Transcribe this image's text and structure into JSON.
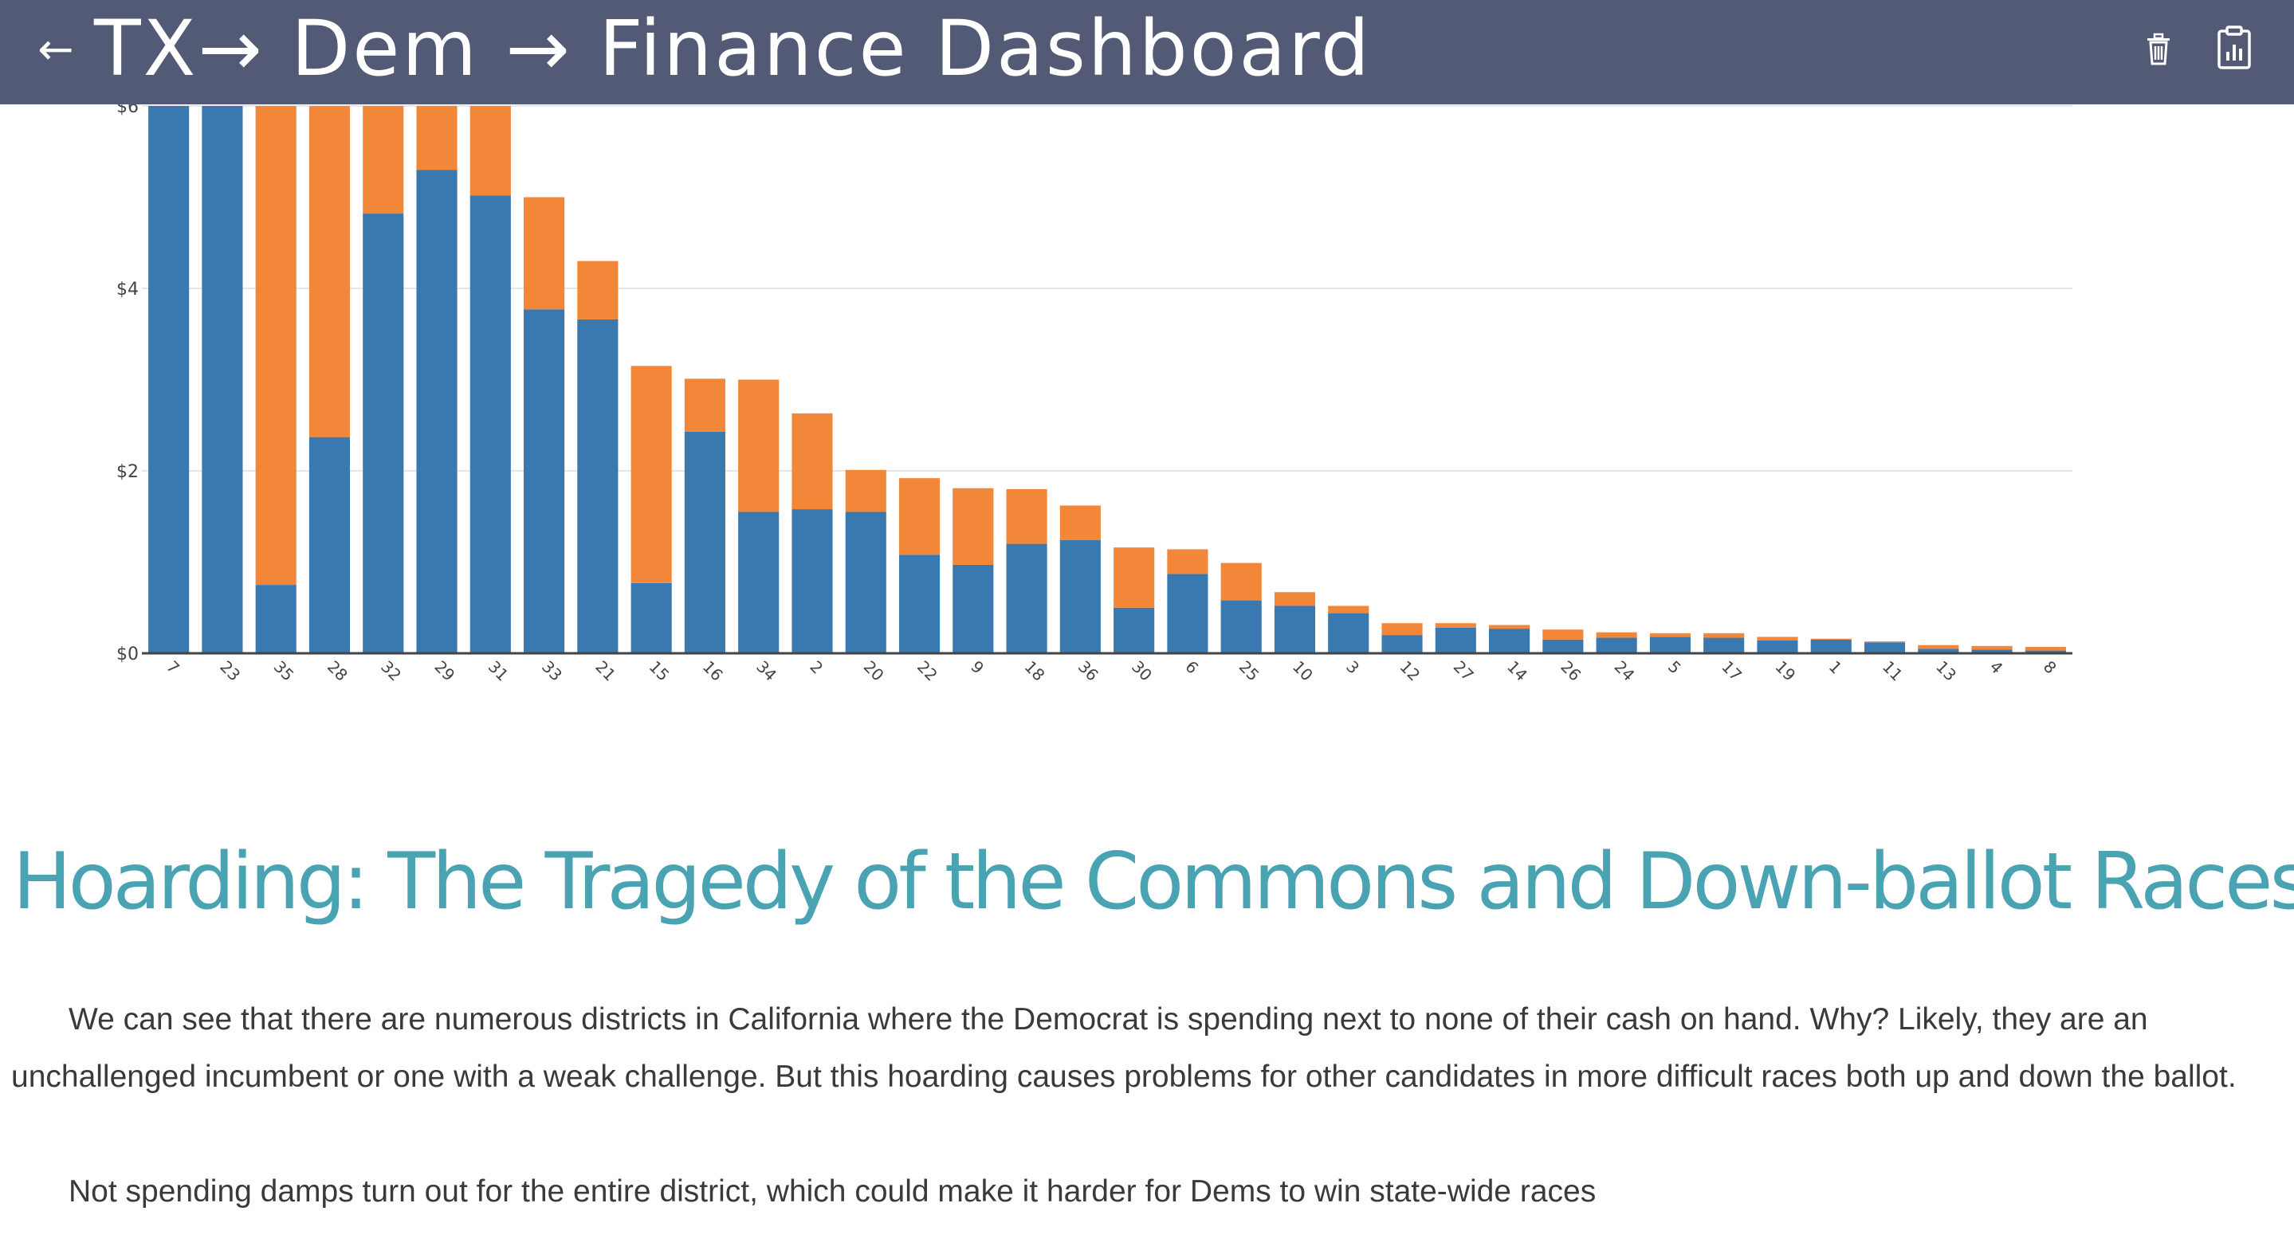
{
  "header": {
    "back_icon": "arrow-left-icon",
    "title": "TX→ Dem → Finance Dashboard",
    "icons": [
      "trash-icon",
      "clipboard-report-icon"
    ],
    "colors": {
      "background": "#525a75",
      "text": "#ffffff"
    }
  },
  "chart_data": {
    "type": "bar",
    "stacked": true,
    "categories": [
      "7",
      "23",
      "35",
      "28",
      "32",
      "29",
      "31",
      "33",
      "21",
      "15",
      "16",
      "34",
      "2",
      "20",
      "22",
      "9",
      "18",
      "36",
      "30",
      "6",
      "25",
      "10",
      "3",
      "12",
      "27",
      "14",
      "26",
      "24",
      "5",
      "17",
      "19",
      "1",
      "11",
      "13",
      "4",
      "8"
    ],
    "series": [
      {
        "color": "#3a78b0",
        "values": [
          6.0,
          6.0,
          0.75,
          2.37,
          4.82,
          5.3,
          5.02,
          3.77,
          3.66,
          0.77,
          2.43,
          1.55,
          1.58,
          1.55,
          1.08,
          0.97,
          1.2,
          1.24,
          0.5,
          0.87,
          0.58,
          0.52,
          0.44,
          0.2,
          0.28,
          0.27,
          0.15,
          0.17,
          0.18,
          0.17,
          0.14,
          0.15,
          0.12,
          0.05,
          0.04,
          0.03
        ]
      },
      {
        "color": "#f2873a",
        "values": [
          0.0,
          0.0,
          5.25,
          3.63,
          1.18,
          0.7,
          0.98,
          1.23,
          0.64,
          2.38,
          0.58,
          1.45,
          1.05,
          0.46,
          0.84,
          0.84,
          0.6,
          0.38,
          0.66,
          0.27,
          0.41,
          0.15,
          0.08,
          0.13,
          0.05,
          0.04,
          0.11,
          0.06,
          0.04,
          0.05,
          0.04,
          0.01,
          0.01,
          0.04,
          0.04,
          0.04
        ]
      }
    ],
    "ylim": [
      0,
      6
    ],
    "y_ticks": [
      "$0",
      "$2",
      "$4",
      "$6"
    ],
    "y_tick_values": [
      0,
      2,
      4,
      6
    ],
    "grid": true,
    "x_tick_rotation": 45
  },
  "article": {
    "title": "Hoarding: The Tragedy of the Commons and Down-ballot Races",
    "title_color": "#4aa3b2",
    "paragraph_1": "We can see that there are numerous districts in California where the Democrat is spending next to none of their cash on hand. Why? Likely, they are an unchallenged incumbent or one with a weak challenge. But this hoarding causes problems for other candidates in more difficult races both up and down the ballot.",
    "paragraph_2": "Not spending damps turn out for the entire district, which could make it harder for Dems to win state-wide races"
  }
}
